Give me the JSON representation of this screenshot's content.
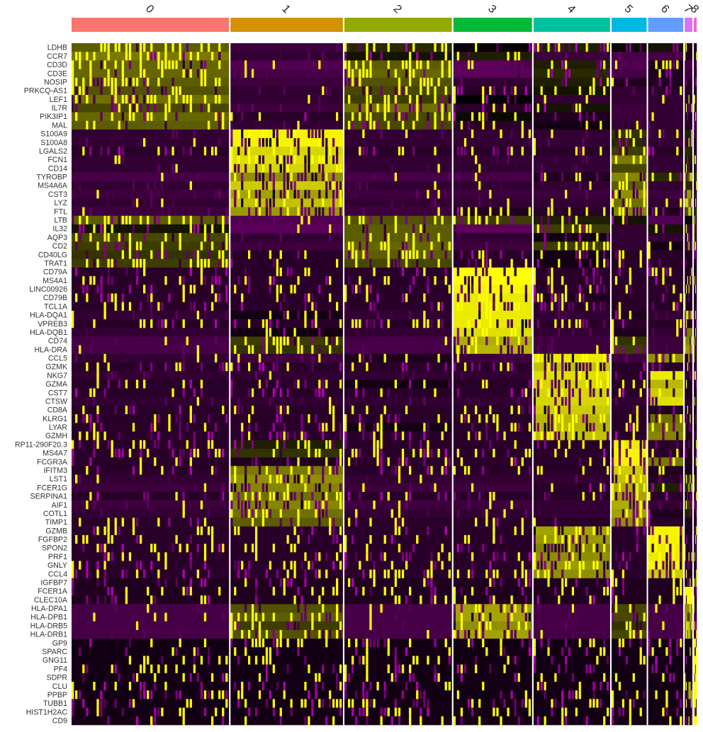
{
  "chart_data": {
    "type": "heatmap",
    "title": "",
    "xlabel": "",
    "ylabel": "",
    "color_scale": [
      "#FF00FF",
      "#000000",
      "#FFFF00"
    ],
    "color_range": [
      -2.5,
      2.5
    ],
    "clusters": [
      {
        "id": "0",
        "cells": 224,
        "color": "#F8766D"
      },
      {
        "id": "1",
        "cells": 160,
        "color": "#D39200"
      },
      {
        "id": "2",
        "cells": 153,
        "color": "#93AA00"
      },
      {
        "id": "3",
        "cells": 112,
        "color": "#00BA38"
      },
      {
        "id": "4",
        "cells": 109,
        "color": "#00C19F"
      },
      {
        "id": "5",
        "cells": 50,
        "color": "#00B9E3"
      },
      {
        "id": "6",
        "cells": 50,
        "color": "#619CFF"
      },
      {
        "id": "7",
        "cells": 11,
        "color": "#DB72FB"
      },
      {
        "id": "8",
        "cells": 4,
        "color": "#FF61C3"
      }
    ],
    "genes": [
      "LDHB",
      "CCR7",
      "CD3D",
      "CD3E",
      "NOSIP",
      "PRKCQ-AS1",
      "LEF1",
      "IL7R",
      "PIK3IP1",
      "MAL",
      "S100A9",
      "S100A8",
      "LGALS2",
      "FCN1",
      "CD14",
      "TYROBP",
      "MS4A6A",
      "CST3",
      "LYZ",
      "FTL",
      "LTB",
      "IL32",
      "AQP3",
      "CD2",
      "CD40LG",
      "TRAT1",
      "CD79A",
      "MS4A1",
      "LINC00926",
      "CD79B",
      "TCL1A",
      "HLA-DQA1",
      "VPREB3",
      "HLA-DQB1",
      "CD74",
      "HLA-DRA",
      "CCL5",
      "GZMK",
      "NKG7",
      "GZMA",
      "CST7",
      "CTSW",
      "CD8A",
      "KLRG1",
      "LYAR",
      "GZMH",
      "RP11-290F20.3",
      "MS4A7",
      "FCGR3A",
      "IFITM3",
      "LST1",
      "FCER1G",
      "SERPINA1",
      "AIF1",
      "COTL1",
      "TIMP1",
      "GZMB",
      "FGFBP2",
      "SPON2",
      "PRF1",
      "GNLY",
      "CCL4",
      "IGFBP7",
      "FCER1A",
      "CLEC10A",
      "HLA-DPA1",
      "HLA-DPB1",
      "HLA-DRB5",
      "HLA-DRB1",
      "GP9",
      "SPARC",
      "GNG11",
      "PF4",
      "SDPR",
      "CLU",
      "PPBP",
      "TUBB1",
      "HIST1H2AC",
      "CD9"
    ],
    "mean_expression": [
      [
        0.9,
        -0.6,
        0.4,
        -0.1,
        0.3,
        0.1,
        0.2,
        -0.3,
        -0.2
      ],
      [
        1.2,
        -0.5,
        0.2,
        0.3,
        -0.6,
        -0.7,
        -0.7,
        -0.3,
        -0.2
      ],
      [
        1.0,
        -0.8,
        0.9,
        -0.9,
        0.3,
        -0.8,
        -0.3,
        -0.7,
        -0.3
      ],
      [
        1.0,
        -0.7,
        1.0,
        -0.9,
        0.4,
        -0.7,
        -0.3,
        -0.6,
        -0.3
      ],
      [
        0.9,
        -0.6,
        0.8,
        -0.5,
        0.3,
        -0.3,
        -0.3,
        -0.4,
        -0.3
      ],
      [
        0.8,
        -0.5,
        0.7,
        -0.4,
        0.2,
        -0.5,
        -0.4,
        -0.4,
        -0.3
      ],
      [
        1.1,
        -0.5,
        0.6,
        0.0,
        -0.5,
        -0.5,
        -0.5,
        -0.4,
        -0.3
      ],
      [
        0.7,
        -0.6,
        1.1,
        -0.4,
        0.2,
        -0.6,
        -0.5,
        -0.4,
        -0.3
      ],
      [
        1.0,
        -0.4,
        0.7,
        0.1,
        -0.3,
        -0.6,
        -0.5,
        -0.4,
        -0.3
      ],
      [
        0.9,
        -0.5,
        0.7,
        -0.4,
        -0.2,
        -0.5,
        -0.5,
        -0.4,
        -0.3
      ],
      [
        -0.5,
        2.4,
        -0.5,
        -0.5,
        -0.5,
        0.5,
        -0.5,
        0.3,
        -0.3
      ],
      [
        -0.5,
        2.4,
        -0.5,
        -0.5,
        -0.5,
        0.4,
        -0.5,
        0.2,
        -0.3
      ],
      [
        -0.4,
        2.1,
        -0.4,
        -0.4,
        -0.4,
        0.6,
        -0.4,
        0.4,
        -0.3
      ],
      [
        -0.5,
        2.2,
        -0.5,
        -0.5,
        -0.5,
        1.2,
        -0.5,
        0.3,
        -0.3
      ],
      [
        -0.5,
        2.1,
        -0.5,
        -0.5,
        -0.5,
        0.7,
        -0.5,
        0.2,
        -0.3
      ],
      [
        -0.7,
        1.4,
        -0.7,
        -0.7,
        -0.3,
        1.3,
        0.4,
        0.9,
        0.4
      ],
      [
        -0.5,
        2.0,
        -0.5,
        -0.5,
        -0.5,
        0.9,
        -0.5,
        0.4,
        -0.3
      ],
      [
        -0.6,
        1.6,
        -0.6,
        -0.6,
        -0.6,
        1.4,
        -0.6,
        1.5,
        0.1
      ],
      [
        -0.5,
        1.9,
        -0.5,
        -0.5,
        -0.5,
        1.1,
        -0.5,
        1.2,
        -0.3
      ],
      [
        -0.6,
        1.5,
        -0.6,
        -0.3,
        -0.4,
        1.3,
        -0.3,
        0.8,
        0.3
      ],
      [
        0.9,
        -0.8,
        0.8,
        0.6,
        0.3,
        0.2,
        -0.8,
        0.1,
        -0.4
      ],
      [
        0.2,
        -0.9,
        0.9,
        -0.9,
        0.6,
        -0.5,
        0.2,
        -0.5,
        -0.4
      ],
      [
        0.7,
        -0.5,
        0.9,
        -0.5,
        -0.2,
        -0.5,
        -0.5,
        -0.4,
        -0.3
      ],
      [
        0.6,
        -0.6,
        1.0,
        -0.6,
        0.6,
        -0.5,
        -0.2,
        -0.4,
        -0.3
      ],
      [
        0.5,
        -0.4,
        0.9,
        -0.4,
        -0.2,
        -0.4,
        -0.4,
        -0.3,
        -0.3
      ],
      [
        0.6,
        -0.4,
        0.7,
        -0.4,
        -0.2,
        -0.4,
        -0.4,
        -0.3,
        -0.3
      ],
      [
        -0.4,
        -0.4,
        -0.4,
        2.5,
        -0.4,
        -0.4,
        -0.4,
        -0.3,
        -0.3
      ],
      [
        -0.4,
        -0.4,
        -0.4,
        2.5,
        -0.4,
        -0.4,
        -0.4,
        -0.3,
        -0.3
      ],
      [
        -0.4,
        -0.4,
        -0.4,
        2.4,
        -0.4,
        -0.4,
        -0.4,
        -0.3,
        -0.3
      ],
      [
        -0.4,
        -0.4,
        -0.4,
        2.3,
        -0.3,
        -0.4,
        -0.4,
        -0.3,
        -0.3
      ],
      [
        -0.4,
        -0.4,
        -0.4,
        2.3,
        -0.4,
        -0.4,
        -0.4,
        -0.3,
        -0.3
      ],
      [
        -0.5,
        -0.2,
        -0.5,
        2.3,
        -0.5,
        -0.3,
        -0.5,
        1.9,
        -0.3
      ],
      [
        -0.4,
        -0.4,
        -0.4,
        2.3,
        -0.4,
        -0.4,
        -0.4,
        -0.3,
        -0.3
      ],
      [
        -0.5,
        -0.2,
        -0.5,
        2.2,
        -0.5,
        -0.3,
        -0.5,
        1.2,
        -0.3
      ],
      [
        -0.7,
        0.6,
        -0.7,
        1.7,
        -0.6,
        0.5,
        -0.6,
        1.3,
        -0.4
      ],
      [
        -0.7,
        0.5,
        -0.7,
        1.8,
        -0.6,
        0.6,
        -0.6,
        1.5,
        -0.4
      ],
      [
        -0.5,
        -0.6,
        -0.3,
        -0.6,
        2.3,
        -0.6,
        1.4,
        -0.4,
        -0.3
      ],
      [
        -0.4,
        -0.4,
        -0.4,
        -0.4,
        1.9,
        -0.4,
        -0.4,
        -0.3,
        -0.3
      ],
      [
        -0.5,
        -0.5,
        -0.5,
        -0.5,
        2.2,
        -0.4,
        2.3,
        -0.4,
        -0.3
      ],
      [
        -0.4,
        -0.4,
        -0.2,
        -0.4,
        2.1,
        -0.4,
        1.8,
        -0.3,
        -0.3
      ],
      [
        -0.4,
        -0.4,
        -0.4,
        -0.4,
        2.1,
        -0.4,
        2.0,
        -0.3,
        -0.3
      ],
      [
        -0.5,
        -0.5,
        -0.5,
        -0.5,
        2.1,
        -0.5,
        2.2,
        -0.4,
        -0.3
      ],
      [
        -0.4,
        -0.4,
        -0.4,
        -0.4,
        2.0,
        -0.4,
        -0.3,
        -0.3,
        -0.3
      ],
      [
        -0.4,
        -0.4,
        -0.4,
        -0.4,
        1.8,
        -0.4,
        1.1,
        -0.3,
        -0.3
      ],
      [
        -0.4,
        -0.4,
        -0.2,
        -0.4,
        1.8,
        -0.4,
        1.2,
        -0.3,
        -0.3
      ],
      [
        -0.4,
        -0.4,
        -0.4,
        -0.4,
        1.9,
        -0.4,
        1.3,
        -0.3,
        -0.3
      ],
      [
        -0.4,
        0.3,
        -0.4,
        -0.4,
        -0.4,
        2.3,
        -0.4,
        -0.3,
        -0.3
      ],
      [
        -0.4,
        0.5,
        -0.4,
        -0.4,
        -0.4,
        2.4,
        -0.4,
        -0.3,
        -0.3
      ],
      [
        -0.4,
        -0.3,
        -0.4,
        -0.4,
        -0.4,
        2.4,
        1.2,
        -0.3,
        -0.3
      ],
      [
        -0.4,
        1.2,
        -0.4,
        -0.4,
        -0.4,
        2.0,
        -0.3,
        -0.3,
        -0.3
      ],
      [
        -0.5,
        1.4,
        -0.5,
        -0.5,
        -0.5,
        1.9,
        -0.4,
        0.5,
        -0.3
      ],
      [
        -0.6,
        1.3,
        -0.6,
        -0.6,
        -0.4,
        1.7,
        0.3,
        0.4,
        -0.3
      ],
      [
        -0.4,
        1.1,
        -0.4,
        -0.4,
        -0.4,
        1.6,
        -0.4,
        -0.3,
        -0.3
      ],
      [
        -0.6,
        1.3,
        -0.6,
        -0.6,
        -0.5,
        1.7,
        -0.5,
        0.6,
        -0.3
      ],
      [
        -0.5,
        1.1,
        -0.5,
        -0.5,
        -0.5,
        1.6,
        -0.3,
        0.3,
        -0.3
      ],
      [
        -0.4,
        0.9,
        -0.4,
        -0.4,
        -0.4,
        1.4,
        -0.4,
        -0.3,
        -0.3
      ],
      [
        -0.4,
        -0.4,
        -0.4,
        -0.4,
        1.6,
        -0.4,
        2.4,
        -0.3,
        -0.3
      ],
      [
        -0.4,
        -0.4,
        -0.4,
        -0.4,
        1.5,
        -0.4,
        2.4,
        -0.3,
        -0.3
      ],
      [
        -0.4,
        -0.4,
        -0.4,
        -0.4,
        1.3,
        -0.4,
        2.3,
        -0.3,
        -0.3
      ],
      [
        -0.4,
        -0.4,
        -0.4,
        -0.4,
        1.4,
        -0.4,
        2.3,
        -0.3,
        -0.3
      ],
      [
        -0.4,
        -0.4,
        -0.4,
        -0.4,
        1.5,
        -0.4,
        2.4,
        -0.3,
        -0.3
      ],
      [
        -0.4,
        -0.4,
        -0.4,
        -0.4,
        1.4,
        -0.4,
        2.0,
        -0.3,
        -0.3
      ],
      [
        -0.3,
        -0.3,
        -0.3,
        -0.3,
        -0.3,
        -0.3,
        -0.3,
        -0.3,
        1.6
      ],
      [
        -0.3,
        -0.3,
        -0.3,
        -0.3,
        -0.3,
        -0.3,
        -0.3,
        2.5,
        -0.3
      ],
      [
        -0.3,
        -0.3,
        -0.3,
        -0.3,
        -0.3,
        -0.3,
        -0.3,
        2.5,
        -0.3
      ],
      [
        -0.7,
        0.8,
        -0.7,
        1.6,
        -0.7,
        0.7,
        -0.7,
        1.4,
        -0.4
      ],
      [
        -0.7,
        0.9,
        -0.7,
        1.6,
        -0.7,
        0.7,
        -0.7,
        1.5,
        -0.4
      ],
      [
        -0.7,
        0.6,
        -0.7,
        1.4,
        -0.7,
        0.5,
        -0.7,
        1.2,
        -0.4
      ],
      [
        -0.7,
        0.8,
        -0.7,
        1.6,
        -0.7,
        0.7,
        -0.7,
        1.3,
        -0.4
      ],
      [
        -0.2,
        -0.2,
        -0.2,
        -0.2,
        -0.2,
        -0.2,
        -0.2,
        -0.2,
        2.5
      ],
      [
        -0.2,
        -0.2,
        -0.2,
        -0.2,
        -0.2,
        -0.2,
        -0.2,
        -0.2,
        2.5
      ],
      [
        -0.2,
        -0.2,
        -0.2,
        -0.2,
        -0.2,
        -0.2,
        -0.2,
        -0.2,
        2.5
      ],
      [
        -0.2,
        -0.2,
        -0.2,
        -0.2,
        -0.2,
        -0.2,
        -0.2,
        -0.2,
        2.5
      ],
      [
        -0.2,
        -0.2,
        -0.2,
        -0.2,
        -0.2,
        -0.2,
        -0.2,
        -0.2,
        2.5
      ],
      [
        -0.2,
        -0.2,
        -0.2,
        -0.2,
        -0.2,
        -0.2,
        -0.2,
        -0.2,
        2.5
      ],
      [
        -0.2,
        -0.2,
        -0.2,
        -0.2,
        -0.2,
        -0.2,
        -0.2,
        -0.2,
        2.5
      ],
      [
        -0.2,
        -0.2,
        -0.2,
        -0.2,
        -0.2,
        -0.2,
        -0.2,
        -0.2,
        2.5
      ],
      [
        -0.2,
        -0.2,
        -0.2,
        -0.2,
        -0.2,
        -0.2,
        -0.2,
        -0.2,
        2.5
      ],
      [
        -0.2,
        -0.2,
        -0.2,
        -0.2,
        -0.2,
        -0.2,
        -0.2,
        -0.2,
        2.5
      ]
    ]
  }
}
